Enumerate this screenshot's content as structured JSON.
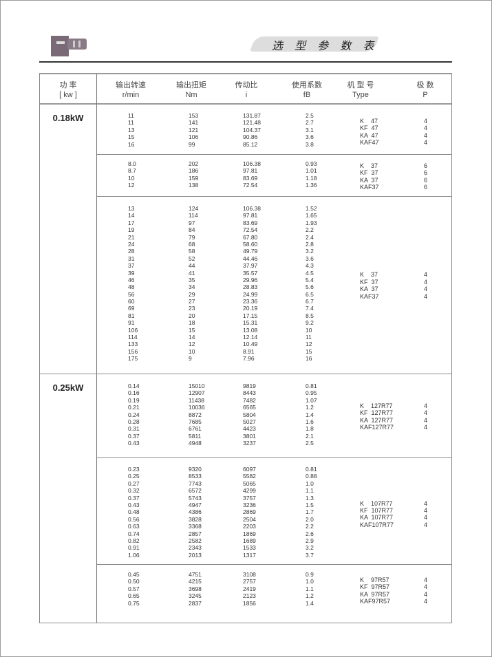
{
  "header": {
    "title": "选 型 参 数 表",
    "logo": "gear-motor-image"
  },
  "columns": [
    {
      "cn": "功  率",
      "unit": "[ kw ]"
    },
    {
      "cn": "输出转速",
      "unit": "r/min"
    },
    {
      "cn": "输出扭矩",
      "unit": "Nm"
    },
    {
      "cn": "传动比",
      "unit": "i"
    },
    {
      "cn": "使用系数",
      "unit": "fB"
    },
    {
      "cn": "机 型 号",
      "unit": "Type"
    },
    {
      "cn": "极  数",
      "unit": "P"
    }
  ],
  "sections": [
    {
      "power": "0.18kW",
      "rows": [
        [
          "11",
          "153",
          "131.87",
          "2.5"
        ],
        [
          "11",
          "141",
          "121.48",
          "2.7"
        ],
        [
          "13",
          "121",
          "104.37",
          "3.1"
        ],
        [
          "15",
          "106",
          "90.86",
          "3.6"
        ],
        [
          "16",
          "99",
          "85.12",
          "3.8"
        ]
      ],
      "types": [
        [
          "K    47",
          "4"
        ],
        [
          "KF  47",
          "4"
        ],
        [
          "KA  47",
          "4"
        ],
        [
          "KAF47",
          "4"
        ]
      ]
    },
    {
      "power": "",
      "rows": [
        [
          "8.0",
          "202",
          "106.38",
          "0.93"
        ],
        [
          "8.7",
          "186",
          "97.81",
          "1.01"
        ],
        [
          "10",
          "159",
          "83.69",
          "1.18"
        ],
        [
          "12",
          "138",
          "72.54",
          "1.36"
        ]
      ],
      "types": [
        [
          "K    37",
          "6"
        ],
        [
          "KF  37",
          "6"
        ],
        [
          "KA  37",
          "6"
        ],
        [
          "KAF37",
          "6"
        ]
      ]
    },
    {
      "power": "",
      "rows": [
        [
          "13",
          "124",
          "106.38",
          "1.52"
        ],
        [
          "14",
          "114",
          "97.81",
          "1.65"
        ],
        [
          "17",
          "97",
          "83.69",
          "1.93"
        ],
        [
          "19",
          "84",
          "72.54",
          "2.2"
        ],
        [
          "21",
          "79",
          "67.80",
          "2.4"
        ],
        [
          "24",
          "68",
          "58.60",
          "2.8"
        ],
        [
          "28",
          "58",
          "49.79",
          "3.2"
        ],
        [
          "31",
          "52",
          "44.46",
          "3.6"
        ],
        [
          "37",
          "44",
          "37.97",
          "4.3"
        ],
        [
          "39",
          "41",
          "35.57",
          "4.5"
        ],
        [
          "46",
          "35",
          "29.96",
          "5.4"
        ],
        [
          "48",
          "34",
          "28.83",
          "5.6"
        ],
        [
          "56",
          "29",
          "24.99",
          "6.5"
        ],
        [
          "60",
          "27",
          "23.36",
          "6.7"
        ],
        [
          "69",
          "23",
          "20.19",
          "7.4"
        ],
        [
          "81",
          "20",
          "17.15",
          "8.5"
        ],
        [
          "91",
          "18",
          "15.31",
          "9.2"
        ],
        [
          "106",
          "15",
          "13.08",
          "10"
        ],
        [
          "114",
          "14",
          "12.14",
          "11"
        ],
        [
          "133",
          "12",
          "10.49",
          "12"
        ],
        [
          "156",
          "10",
          "8.91",
          "15"
        ],
        [
          "175",
          "9",
          "7.96",
          "16"
        ]
      ],
      "types": [
        [
          "K    37",
          "4"
        ],
        [
          "KF  37",
          "4"
        ],
        [
          "KA  37",
          "4"
        ],
        [
          "KAF37",
          "4"
        ]
      ]
    },
    {
      "power": "0.25kW",
      "rows": [
        [
          "0.14",
          "15010",
          "9819",
          "0.81"
        ],
        [
          "0.16",
          "12907",
          "8443",
          "0.95"
        ],
        [
          "0.19",
          "11438",
          "7482",
          "1.07"
        ],
        [
          "0.21",
          "10036",
          "6565",
          "1.2"
        ],
        [
          "0.24",
          "8872",
          "5804",
          "1.4"
        ],
        [
          "0.28",
          "7685",
          "5027",
          "1.6"
        ],
        [
          "0.31",
          "6761",
          "4423",
          "1.8"
        ],
        [
          "0.37",
          "5811",
          "3801",
          "2.1"
        ],
        [
          "0.43",
          "4948",
          "3237",
          "2.5"
        ]
      ],
      "types": [
        [
          "K    127R77",
          "4"
        ],
        [
          "KF  127R77",
          "4"
        ],
        [
          "KA  127R77",
          "4"
        ],
        [
          "KAF127R77",
          "4"
        ]
      ]
    },
    {
      "power": "",
      "rows": [
        [
          "0.23",
          "9320",
          "6097",
          "0.81"
        ],
        [
          "0.25",
          "8533",
          "5582",
          "0.88"
        ],
        [
          "0.27",
          "7743",
          "5065",
          "1.0"
        ],
        [
          "0.32",
          "6572",
          "4299",
          "1.1"
        ],
        [
          "0.37",
          "5743",
          "3757",
          "1.3"
        ],
        [
          "0.43",
          "4947",
          "3236",
          "1.5"
        ],
        [
          "0.48",
          "4386",
          "2869",
          "1.7"
        ],
        [
          "0.56",
          "3828",
          "2504",
          "2.0"
        ],
        [
          "0.63",
          "3368",
          "2203",
          "2.2"
        ],
        [
          "0.74",
          "2857",
          "1869",
          "2.6"
        ],
        [
          "0.82",
          "2582",
          "1689",
          "2.9"
        ],
        [
          "0.91",
          "2343",
          "1533",
          "3.2"
        ],
        [
          "1.06",
          "2013",
          "1317",
          "3.7"
        ]
      ],
      "types": [
        [
          "K    107R77",
          "4"
        ],
        [
          "KF  107R77",
          "4"
        ],
        [
          "KA  107R77",
          "4"
        ],
        [
          "KAF107R77",
          "4"
        ]
      ]
    },
    {
      "power": "",
      "rows": [
        [
          "0.45",
          "4751",
          "3108",
          "0.9"
        ],
        [
          "0.50",
          "4215",
          "2757",
          "1.0"
        ],
        [
          "0.57",
          "3698",
          "2419",
          "1.1"
        ],
        [
          "0.65",
          "3245",
          "2123",
          "1.2"
        ],
        [
          "0.75",
          "2837",
          "1856",
          "1.4"
        ]
      ],
      "types": [
        [
          "K    97R57",
          "4"
        ],
        [
          "KF  97R57",
          "4"
        ],
        [
          "KA  97R57",
          "4"
        ],
        [
          "KAF97R57",
          "4"
        ]
      ]
    }
  ]
}
